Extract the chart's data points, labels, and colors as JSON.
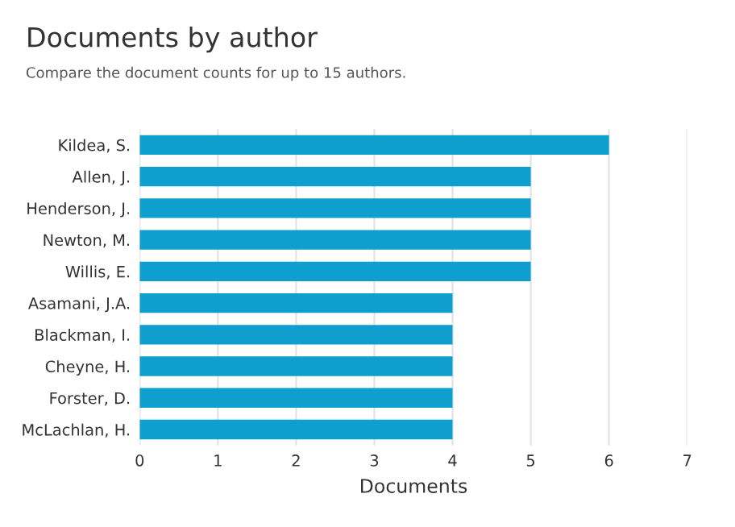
{
  "chart_data": {
    "type": "bar",
    "orientation": "horizontal",
    "title": "Documents by author",
    "subtitle": "Compare the document counts for up to 15 authors.",
    "xlabel": "Documents",
    "categories": [
      "Kildea, S.",
      "Allen, J.",
      "Henderson, J.",
      "Newton, M.",
      "Willis, E.",
      "Asamani, J.A.",
      "Blackman, I.",
      "Cheyne, H.",
      "Forster, D.",
      "McLachlan, H."
    ],
    "values": [
      6,
      5,
      5,
      5,
      5,
      4,
      4,
      4,
      4,
      4
    ],
    "color": "#0e9fcf",
    "xlim": [
      0,
      7
    ],
    "xticks": [
      0,
      1,
      2,
      3,
      4,
      5,
      6,
      7
    ],
    "grid": "x",
    "legend": false
  }
}
